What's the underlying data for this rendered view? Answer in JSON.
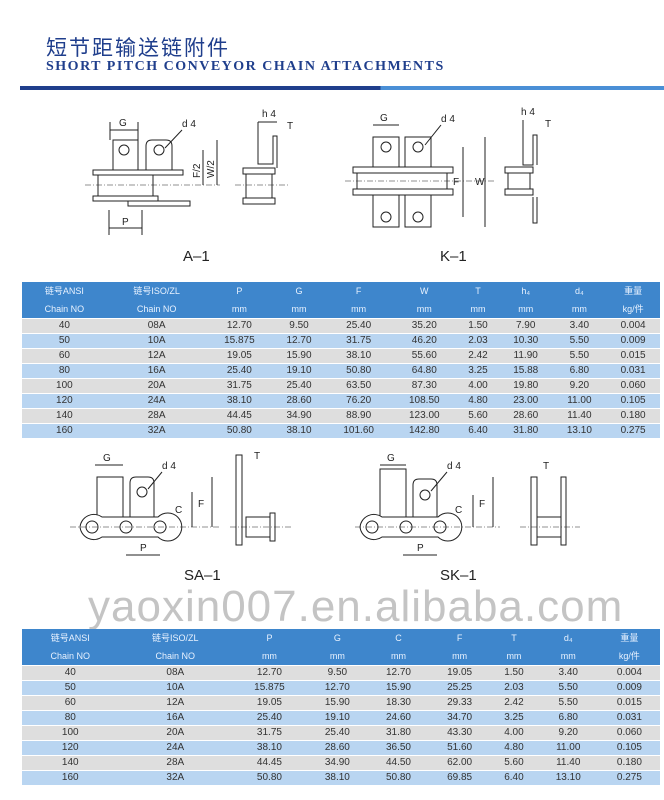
{
  "header": {
    "title_cn": "短节距输送链附件",
    "title_en": "SHORT PITCH CONVEYOR CHAIN ATTACHMENTS"
  },
  "diagrams": {
    "a1": {
      "caption": "A–1",
      "labels": {
        "g": "G",
        "d4": "d 4",
        "p": "P",
        "f2": "F/2",
        "w2": "W/2",
        "h4": "h 4",
        "t": "T"
      }
    },
    "k1": {
      "caption": "K–1",
      "labels": {
        "g": "G",
        "d4": "d 4",
        "f": "F",
        "w": "W",
        "h4": "h 4",
        "t": "T"
      }
    },
    "sa1": {
      "caption": "SA–1",
      "labels": {
        "g": "G",
        "d4": "d 4",
        "c": "C",
        "f": "F",
        "p": "P",
        "t": "T"
      }
    },
    "sk1": {
      "caption": "SK–1",
      "labels": {
        "g": "G",
        "d4": "d 4",
        "c": "C",
        "f": "F",
        "p": "P",
        "t": "T"
      }
    }
  },
  "watermark": "yaoxin007.en.alibaba.com",
  "colors": {
    "title": "#1f3e8c",
    "table_header": "#3e86cc",
    "row_grey": "#dedede",
    "row_blue": "#b9d5f1"
  },
  "table1": {
    "headers": [
      [
        "链号ANSI",
        "Chain NO"
      ],
      [
        "链号ISO/ZL",
        "Chain NO"
      ],
      [
        "P",
        "mm"
      ],
      [
        "G",
        "mm"
      ],
      [
        "F",
        "mm"
      ],
      [
        "W",
        "mm"
      ],
      [
        "T",
        "mm"
      ],
      [
        "h₄",
        "mm"
      ],
      [
        "d₄",
        "mm"
      ],
      [
        "重量",
        "kg/件"
      ]
    ],
    "rows": [
      [
        "40",
        "08A",
        "12.70",
        "9.50",
        "25.40",
        "35.20",
        "1.50",
        "7.90",
        "3.40",
        "0.004"
      ],
      [
        "50",
        "10A",
        "15.875",
        "12.70",
        "31.75",
        "46.20",
        "2.03",
        "10.30",
        "5.50",
        "0.009"
      ],
      [
        "60",
        "12A",
        "19.05",
        "15.90",
        "38.10",
        "55.60",
        "2.42",
        "11.90",
        "5.50",
        "0.015"
      ],
      [
        "80",
        "16A",
        "25.40",
        "19.10",
        "50.80",
        "64.80",
        "3.25",
        "15.88",
        "6.80",
        "0.031"
      ],
      [
        "100",
        "20A",
        "31.75",
        "25.40",
        "63.50",
        "87.30",
        "4.00",
        "19.80",
        "9.20",
        "0.060"
      ],
      [
        "120",
        "24A",
        "38.10",
        "28.60",
        "76.20",
        "108.50",
        "4.80",
        "23.00",
        "11.00",
        "0.105"
      ],
      [
        "140",
        "28A",
        "44.45",
        "34.90",
        "88.90",
        "123.00",
        "5.60",
        "28.60",
        "11.40",
        "0.180"
      ],
      [
        "160",
        "32A",
        "50.80",
        "38.10",
        "101.60",
        "142.80",
        "6.40",
        "31.80",
        "13.10",
        "0.275"
      ]
    ]
  },
  "table2": {
    "headers": [
      [
        "链号ANSI",
        "Chain NO"
      ],
      [
        "链号ISO/ZL",
        "Chain NO"
      ],
      [
        "P",
        "mm"
      ],
      [
        "G",
        "mm"
      ],
      [
        "C",
        "mm"
      ],
      [
        "F",
        "mm"
      ],
      [
        "T",
        "mm"
      ],
      [
        "d₄",
        "mm"
      ],
      [
        "重量",
        "kg/件"
      ]
    ],
    "rows": [
      [
        "40",
        "08A",
        "12.70",
        "9.50",
        "12.70",
        "19.05",
        "1.50",
        "3.40",
        "0.004"
      ],
      [
        "50",
        "10A",
        "15.875",
        "12.70",
        "15.90",
        "25.25",
        "2.03",
        "5.50",
        "0.009"
      ],
      [
        "60",
        "12A",
        "19.05",
        "15.90",
        "18.30",
        "29.33",
        "2.42",
        "5.50",
        "0.015"
      ],
      [
        "80",
        "16A",
        "25.40",
        "19.10",
        "24.60",
        "34.70",
        "3.25",
        "6.80",
        "0.031"
      ],
      [
        "100",
        "20A",
        "31.75",
        "25.40",
        "31.80",
        "43.30",
        "4.00",
        "9.20",
        "0.060"
      ],
      [
        "120",
        "24A",
        "38.10",
        "28.60",
        "36.50",
        "51.60",
        "4.80",
        "11.00",
        "0.105"
      ],
      [
        "140",
        "28A",
        "44.45",
        "34.90",
        "44.50",
        "62.00",
        "5.60",
        "11.40",
        "0.180"
      ],
      [
        "160",
        "32A",
        "50.80",
        "38.10",
        "50.80",
        "69.85",
        "6.40",
        "13.10",
        "0.275"
      ]
    ]
  }
}
